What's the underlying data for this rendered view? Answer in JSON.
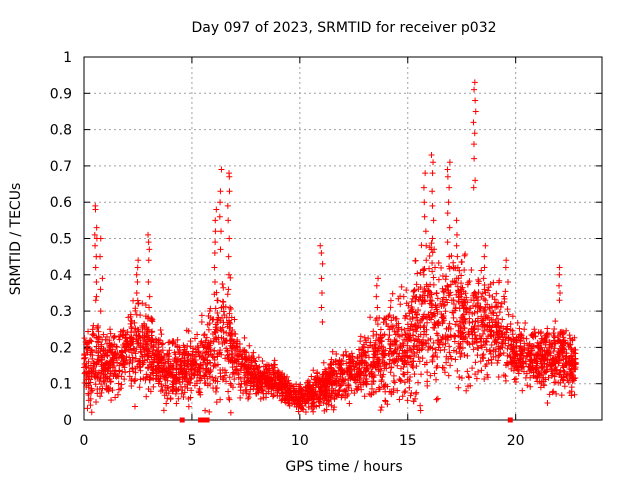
{
  "chart_data": {
    "type": "scatter",
    "title": "Day 097 of 2023, SRMTID for receiver p032",
    "xlabel": "GPS time / hours",
    "ylabel": "SRMTID / TECUs",
    "xlim": [
      0,
      24
    ],
    "ylim": [
      0,
      1
    ],
    "xticks": [
      0,
      5,
      10,
      15,
      20
    ],
    "yticks": [
      0,
      0.1,
      0.2,
      0.3,
      0.4,
      0.5,
      0.6,
      0.7,
      0.8,
      0.9,
      1
    ],
    "xtick_labels": [
      "0",
      "5",
      "10",
      "15",
      "20"
    ],
    "ytick_labels": [
      "0",
      "0.1",
      "0.2",
      "0.3",
      "0.4",
      "0.5",
      "0.6",
      "0.7",
      "0.8",
      "0.9",
      "1"
    ],
    "grid": true,
    "marker": "plus",
    "color": "#ff0000",
    "profile_hours": [
      0,
      0.3,
      0.6,
      1.0,
      1.5,
      2.0,
      2.5,
      3.0,
      3.5,
      4.0,
      4.5,
      5.0,
      5.5,
      6.0,
      6.5,
      7.0,
      7.5,
      8.0,
      8.5,
      9.0,
      9.5,
      10.0,
      10.5,
      11.0,
      11.5,
      12.0,
      12.5,
      13.0,
      13.5,
      14.0,
      14.5,
      15.0,
      15.5,
      16.0,
      16.5,
      17.0,
      17.5,
      18.0,
      18.5,
      19.0,
      19.5,
      19.9,
      20.5,
      21.0,
      21.5,
      22.0,
      22.5,
      22.8
    ],
    "profile_mean": [
      0.16,
      0.15,
      0.17,
      0.15,
      0.17,
      0.19,
      0.21,
      0.2,
      0.15,
      0.13,
      0.14,
      0.15,
      0.16,
      0.2,
      0.24,
      0.17,
      0.14,
      0.12,
      0.11,
      0.11,
      0.07,
      0.06,
      0.07,
      0.09,
      0.11,
      0.12,
      0.13,
      0.15,
      0.17,
      0.18,
      0.2,
      0.22,
      0.26,
      0.28,
      0.29,
      0.29,
      0.28,
      0.27,
      0.26,
      0.24,
      0.22,
      0.18,
      0.17,
      0.17,
      0.18,
      0.18,
      0.16,
      0.15
    ],
    "profile_spread": [
      0.04,
      0.08,
      0.06,
      0.05,
      0.05,
      0.06,
      0.08,
      0.07,
      0.05,
      0.05,
      0.05,
      0.05,
      0.06,
      0.09,
      0.12,
      0.06,
      0.04,
      0.03,
      0.03,
      0.03,
      0.02,
      0.02,
      0.03,
      0.04,
      0.04,
      0.04,
      0.04,
      0.05,
      0.07,
      0.08,
      0.08,
      0.09,
      0.12,
      0.12,
      0.11,
      0.1,
      0.1,
      0.1,
      0.09,
      0.08,
      0.07,
      0.05,
      0.05,
      0.05,
      0.06,
      0.06,
      0.05,
      0.05
    ],
    "num_background_points": 3400,
    "peaks": [
      {
        "x": 0.55,
        "values": [
          0.59,
          0.58,
          0.53,
          0.51,
          0.5,
          0.48,
          0.45,
          0.42,
          0.38,
          0.34,
          0.33
        ]
      },
      {
        "x": 0.8,
        "values": [
          0.5,
          0.45,
          0.39,
          0.36,
          0.3
        ]
      },
      {
        "x": 2.5,
        "values": [
          0.44,
          0.42,
          0.4,
          0.38,
          0.35,
          0.32
        ]
      },
      {
        "x": 3.0,
        "values": [
          0.51,
          0.49,
          0.47,
          0.44,
          0.38,
          0.34
        ]
      },
      {
        "x": 6.1,
        "values": [
          0.58,
          0.55,
          0.52,
          0.49,
          0.46,
          0.42,
          0.38
        ]
      },
      {
        "x": 6.35,
        "values": [
          0.69,
          0.63,
          0.6,
          0.56,
          0.52,
          0.47
        ]
      },
      {
        "x": 6.7,
        "values": [
          0.68,
          0.67,
          0.63,
          0.59,
          0.55,
          0.5,
          0.45,
          0.4,
          0.36
        ]
      },
      {
        "x": 11.0,
        "values": [
          0.48,
          0.46,
          0.43,
          0.39,
          0.35,
          0.31,
          0.27
        ]
      },
      {
        "x": 13.6,
        "values": [
          0.39,
          0.37,
          0.34,
          0.31
        ]
      },
      {
        "x": 15.8,
        "values": [
          0.68,
          0.64,
          0.6,
          0.56,
          0.52,
          0.48,
          0.44,
          0.4
        ]
      },
      {
        "x": 16.15,
        "values": [
          0.73,
          0.71,
          0.68,
          0.63,
          0.59,
          0.55,
          0.5
        ]
      },
      {
        "x": 16.9,
        "values": [
          0.71,
          0.69,
          0.67,
          0.64,
          0.6,
          0.57,
          0.53,
          0.49,
          0.45
        ]
      },
      {
        "x": 17.3,
        "values": [
          0.55,
          0.51,
          0.48,
          0.45,
          0.42,
          0.39
        ]
      },
      {
        "x": 18.1,
        "values": [
          0.93,
          0.91,
          0.88,
          0.85,
          0.82,
          0.79,
          0.76,
          0.72,
          0.66,
          0.64
        ]
      },
      {
        "x": 18.55,
        "values": [
          0.48,
          0.45,
          0.42,
          0.39,
          0.36,
          0.33
        ]
      },
      {
        "x": 19.6,
        "values": [
          0.44,
          0.42,
          0.38
        ]
      },
      {
        "x": 22.0,
        "values": [
          0.42,
          0.4,
          0.37,
          0.35,
          0.33
        ]
      }
    ],
    "zero_markers": [
      4.55,
      5.4,
      5.5,
      5.7,
      19.75
    ]
  }
}
